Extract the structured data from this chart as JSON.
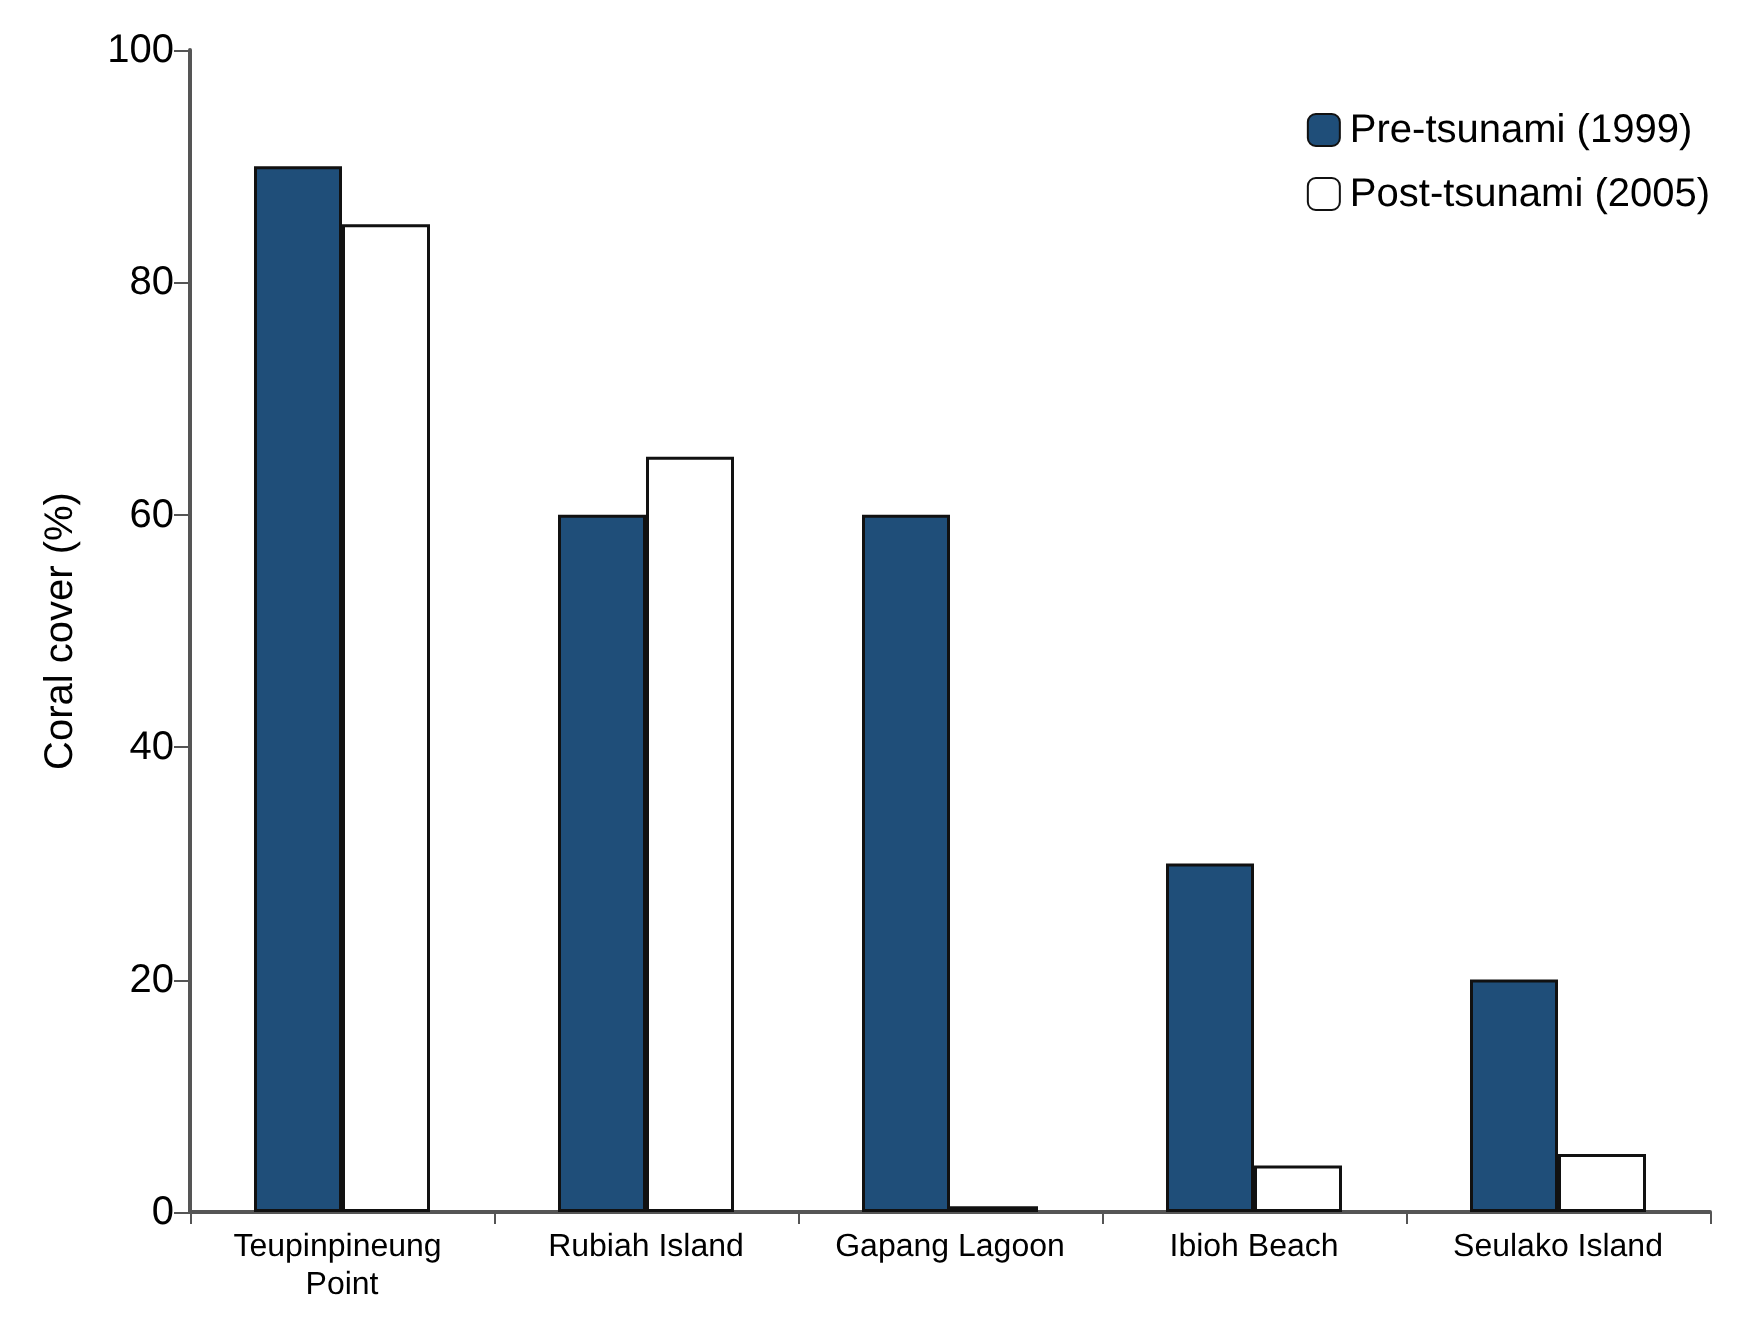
{
  "chart_data": {
    "type": "bar",
    "ylabel": "Coral cover (%)",
    "categories": [
      "Teupinpineung Point",
      "Rubiah Island",
      "Gapang Lagoon",
      "Ibioh Beach",
      "Seulako Island"
    ],
    "series": [
      {
        "name": "Pre-tsunami (1999)",
        "color": "#1f4e79",
        "values": [
          90,
          60,
          60,
          30,
          20
        ]
      },
      {
        "name": "Post-tsunami (2005)",
        "color": "#ffffff",
        "values": [
          85,
          65,
          0.5,
          4,
          5
        ]
      }
    ],
    "ylim": [
      0,
      100
    ],
    "yticks": [
      0,
      20,
      40,
      60,
      80,
      100
    ],
    "grid": false,
    "legend": "top right"
  }
}
